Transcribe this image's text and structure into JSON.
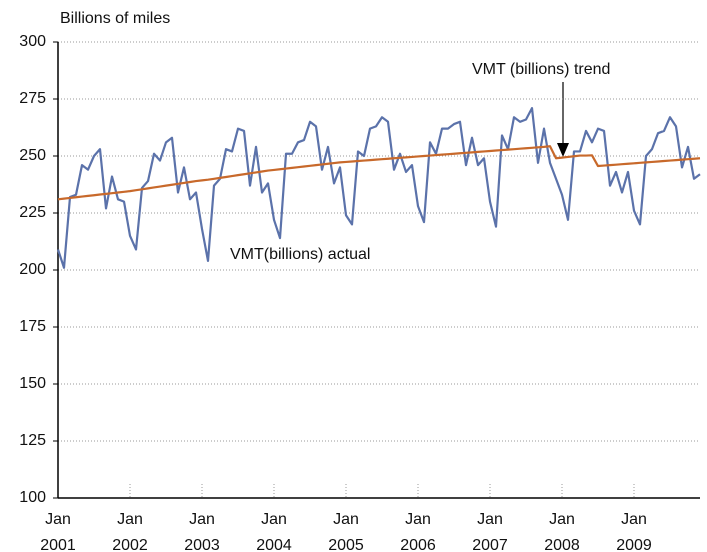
{
  "chart_data": {
    "type": "line",
    "y_label": "Billions of miles",
    "x": [
      "2001-01",
      "2001-02",
      "2001-03",
      "2001-04",
      "2001-05",
      "2001-06",
      "2001-07",
      "2001-08",
      "2001-09",
      "2001-10",
      "2001-11",
      "2001-12",
      "2002-01",
      "2002-02",
      "2002-03",
      "2002-04",
      "2002-05",
      "2002-06",
      "2002-07",
      "2002-08",
      "2002-09",
      "2002-10",
      "2002-11",
      "2002-12",
      "2003-01",
      "2003-02",
      "2003-03",
      "2003-04",
      "2003-05",
      "2003-06",
      "2003-07",
      "2003-08",
      "2003-09",
      "2003-10",
      "2003-11",
      "2003-12",
      "2004-01",
      "2004-02",
      "2004-03",
      "2004-04",
      "2004-05",
      "2004-06",
      "2004-07",
      "2004-08",
      "2004-09",
      "2004-10",
      "2004-11",
      "2004-12",
      "2005-01",
      "2005-02",
      "2005-03",
      "2005-04",
      "2005-05",
      "2005-06",
      "2005-07",
      "2005-08",
      "2005-09",
      "2005-10",
      "2005-11",
      "2005-12",
      "2006-01",
      "2006-02",
      "2006-03",
      "2006-04",
      "2006-05",
      "2006-06",
      "2006-07",
      "2006-08",
      "2006-09",
      "2006-10",
      "2006-11",
      "2006-12",
      "2007-01",
      "2007-02",
      "2007-03",
      "2007-04",
      "2007-05",
      "2007-06",
      "2007-07",
      "2007-08",
      "2007-09",
      "2007-10",
      "2007-11",
      "2007-12",
      "2008-01",
      "2008-02",
      "2008-03",
      "2008-04",
      "2008-05",
      "2008-06",
      "2008-07",
      "2008-08",
      "2008-09",
      "2008-10",
      "2008-11",
      "2008-12",
      "2009-01",
      "2009-02",
      "2009-03",
      "2009-04",
      "2009-05",
      "2009-06",
      "2009-07",
      "2009-08",
      "2009-09",
      "2009-10",
      "2009-11",
      "2009-12"
    ],
    "series": [
      {
        "name": "VMT(billions) actual",
        "color": "#5b72aa",
        "values": [
          209,
          201,
          232,
          233,
          246,
          244,
          250,
          253,
          227,
          241,
          231,
          230,
          215,
          209,
          236,
          239,
          251,
          248,
          256,
          258,
          234,
          245,
          231,
          234,
          218,
          204,
          237,
          240,
          253,
          252,
          262,
          261,
          237,
          254,
          234,
          238,
          222,
          214,
          251,
          251,
          256,
          257,
          265,
          263,
          244,
          254,
          238,
          245,
          224,
          220,
          252,
          250,
          262,
          263,
          267,
          265,
          244,
          251,
          243,
          246,
          228,
          221,
          256,
          251,
          262,
          262,
          264,
          265,
          246,
          258,
          246,
          249,
          230,
          219,
          259,
          253,
          267,
          265,
          266,
          271,
          247,
          262,
          247,
          240,
          233,
          222,
          252,
          252,
          261,
          256,
          262,
          261,
          237,
          243,
          234,
          243,
          226,
          220,
          250,
          253,
          260,
          261,
          267,
          263,
          245,
          254,
          240,
          242
        ]
      },
      {
        "name": "VMT (billions) trend",
        "color": "#c8692b",
        "values": [
          231,
          231.3,
          231.6,
          231.9,
          232.2,
          232.5,
          232.8,
          233.1,
          233.4,
          233.7,
          234,
          234.3,
          234.6,
          235,
          235.4,
          235.8,
          236.2,
          236.6,
          237,
          237.4,
          237.8,
          238.2,
          238.6,
          239,
          239.3,
          239.6,
          240,
          240.4,
          240.8,
          241.2,
          241.6,
          242,
          242.4,
          242.8,
          243.2,
          243.6,
          243.9,
          244.2,
          244.5,
          244.8,
          245.1,
          245.4,
          245.7,
          246,
          246.3,
          246.6,
          246.9,
          247.2,
          247.4,
          247.6,
          247.8,
          248,
          248.2,
          248.4,
          248.6,
          248.8,
          249,
          249.2,
          249.4,
          249.6,
          249.8,
          250,
          250.2,
          250.4,
          250.6,
          250.8,
          251,
          251.2,
          251.4,
          251.6,
          251.8,
          252,
          252.2,
          252.4,
          252.6,
          252.8,
          253,
          253.2,
          253.4,
          253.6,
          253.8,
          254,
          254.3,
          249,
          249.3,
          249.6,
          249.9,
          250.2,
          250.2,
          250.3,
          245.6,
          245.8,
          246,
          246.2,
          246.4,
          246.6,
          246.8,
          247,
          247.2,
          247.4,
          247.6,
          247.8,
          248,
          248.2,
          248.4,
          248.6,
          248.8,
          249
        ]
      }
    ],
    "xlim": [
      "2001-01",
      "2009-12"
    ],
    "xticks": [
      {
        "value": "2001-01",
        "label": "Jan 2001"
      },
      {
        "value": "2002-01",
        "label": "Jan 2002"
      },
      {
        "value": "2003-01",
        "label": "Jan 2003"
      },
      {
        "value": "2004-01",
        "label": "Jan 2004"
      },
      {
        "value": "2005-01",
        "label": "Jan 2005"
      },
      {
        "value": "2006-01",
        "label": "Jan 2006"
      },
      {
        "value": "2007-01",
        "label": "Jan 2007"
      },
      {
        "value": "2008-01",
        "label": "Jan 2008"
      },
      {
        "value": "2009-01",
        "label": "Jan 2009"
      }
    ],
    "ylim": [
      100,
      300
    ],
    "yticks": [
      100,
      125,
      150,
      175,
      200,
      225,
      250,
      275,
      300
    ],
    "grid": true
  }
}
